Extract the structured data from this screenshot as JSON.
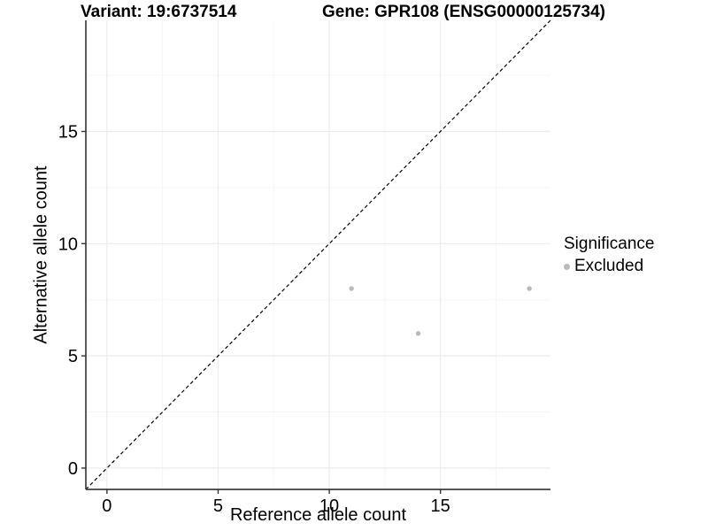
{
  "chart_data": {
    "type": "scatter",
    "title_left": "Variant: 19:6737514",
    "title_right": "Gene: GPR108 (ENSG00000125734)",
    "xlabel": "Reference allele count",
    "ylabel": "Alternative allele count",
    "xlim": [
      -0.95,
      19.95
    ],
    "ylim": [
      -0.95,
      19.95
    ],
    "x_ticks": [
      0,
      5,
      10,
      15
    ],
    "y_ticks": [
      0,
      5,
      10,
      15
    ],
    "x_minor_ticks": [
      2.5,
      7.5,
      12.5,
      17.5
    ],
    "y_minor_ticks": [
      2.5,
      7.5,
      12.5,
      17.5
    ],
    "grid": true,
    "series": [
      {
        "name": "Excluded",
        "color": "#b9b9b9",
        "points": [
          [
            11,
            8
          ],
          [
            14,
            6
          ],
          [
            19,
            8
          ]
        ]
      }
    ],
    "identity_line": {
      "style": "dashed",
      "from": [
        -0.95,
        -0.95
      ],
      "to": [
        19.95,
        19.95
      ],
      "color": "#000000"
    },
    "legend": {
      "title": "Significance",
      "position": "right",
      "items": [
        {
          "label": "Excluded",
          "color": "#b9b9b9"
        }
      ]
    },
    "colors": {
      "grid_major": "#ebebeb",
      "grid_minor": "#f5f5f5",
      "axis_line": "#404040",
      "tick_mark": "#333333",
      "tick_label": "#000000",
      "background": "#ffffff"
    }
  }
}
